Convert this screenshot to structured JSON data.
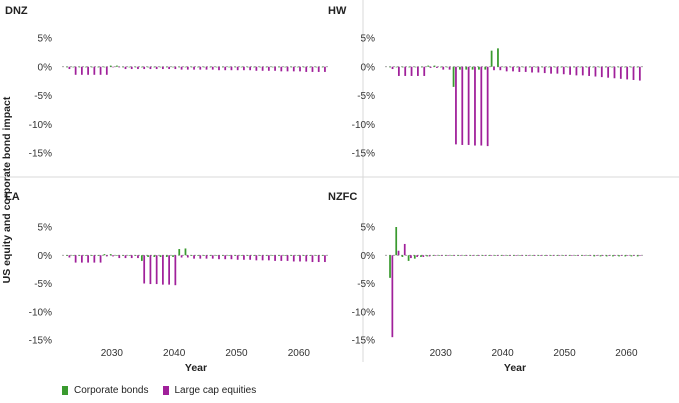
{
  "y_axis_label": "US equity  and corporate bond impact",
  "legend": {
    "items": [
      {
        "label": "Corporate bonds",
        "color": "#3a9a2f"
      },
      {
        "label": "Large cap equities",
        "color": "#a0209a"
      }
    ]
  },
  "chart_data": [
    {
      "type": "bar",
      "title": "DNZ",
      "xlabel": "",
      "ylabel": "",
      "ylim": [
        -15,
        5
      ],
      "y_ticks": [
        "5%",
        "0%",
        "-5%",
        "-10%",
        "-15%"
      ],
      "x_ticks": [],
      "years": [
        2023,
        2024,
        2025,
        2026,
        2027,
        2028,
        2029,
        2030,
        2031,
        2032,
        2033,
        2034,
        2035,
        2036,
        2037,
        2038,
        2039,
        2040,
        2041,
        2042,
        2043,
        2044,
        2045,
        2046,
        2047,
        2048,
        2049,
        2050,
        2051,
        2052,
        2053,
        2054,
        2055,
        2056,
        2057,
        2058,
        2059,
        2060,
        2061,
        2062,
        2063,
        2064
      ],
      "series": [
        {
          "name": "Corporate bonds",
          "values": [
            0,
            -0.1,
            -0.1,
            -0.1,
            -0.1,
            -0.1,
            -0.1,
            0.2,
            0.2,
            -0.1,
            -0.1,
            -0.1,
            -0.1,
            -0.1,
            -0.1,
            -0.1,
            -0.1,
            -0.1,
            -0.1,
            -0.1,
            -0.1,
            -0.1,
            -0.1,
            -0.1,
            -0.1,
            -0.1,
            -0.1,
            -0.1,
            -0.1,
            -0.1,
            -0.1,
            -0.1,
            -0.1,
            -0.1,
            -0.1,
            -0.1,
            -0.1,
            -0.1,
            -0.1,
            -0.1,
            -0.1,
            -0.1
          ]
        },
        {
          "name": "Large cap equities",
          "values": [
            -0.4,
            -1.4,
            -1.4,
            -1.4,
            -1.4,
            -1.4,
            -1.4,
            -0.1,
            -0.1,
            -0.4,
            -0.4,
            -0.4,
            -0.4,
            -0.4,
            -0.4,
            -0.4,
            -0.4,
            -0.4,
            -0.5,
            -0.5,
            -0.5,
            -0.5,
            -0.5,
            -0.5,
            -0.6,
            -0.6,
            -0.6,
            -0.6,
            -0.6,
            -0.6,
            -0.7,
            -0.7,
            -0.7,
            -0.7,
            -0.8,
            -0.8,
            -0.8,
            -0.8,
            -0.9,
            -0.9,
            -0.9,
            -0.9
          ]
        }
      ]
    },
    {
      "type": "bar",
      "title": "HW",
      "xlabel": "",
      "ylabel": "",
      "ylim": [
        -15,
        5
      ],
      "y_ticks": [
        "5%",
        "0%",
        "-5%",
        "-10%",
        "-15%"
      ],
      "x_ticks": [],
      "years": [
        2023,
        2024,
        2025,
        2026,
        2027,
        2028,
        2029,
        2030,
        2031,
        2032,
        2033,
        2034,
        2035,
        2036,
        2037,
        2038,
        2039,
        2040,
        2041,
        2042,
        2043,
        2044,
        2045,
        2046,
        2047,
        2048,
        2049,
        2050,
        2051,
        2052,
        2053,
        2054,
        2055,
        2056,
        2057,
        2058,
        2059,
        2060,
        2061,
        2062
      ],
      "series": [
        {
          "name": "Corporate bonds",
          "values": [
            0,
            -0.1,
            -0.1,
            -0.1,
            -0.1,
            -0.1,
            0.2,
            0.2,
            -0.1,
            -0.1,
            -3.5,
            -0.5,
            -0.5,
            -0.5,
            -0.5,
            -0.5,
            2.8,
            3.2,
            -0.1,
            -0.1,
            -0.1,
            -0.1,
            -0.1,
            -0.1,
            -0.1,
            -0.1,
            -0.1,
            -0.1,
            -0.1,
            -0.1,
            -0.1,
            -0.1,
            -0.1,
            -0.1,
            -0.1,
            -0.1,
            -0.1,
            -0.1,
            -0.1,
            -0.1
          ]
        },
        {
          "name": "Large cap equities",
          "values": [
            -0.4,
            -1.6,
            -1.6,
            -1.6,
            -1.6,
            -1.6,
            -0.2,
            -0.2,
            -0.5,
            -0.5,
            -13.5,
            -13.6,
            -13.6,
            -13.7,
            -13.7,
            -13.8,
            -0.6,
            -0.6,
            -0.8,
            -0.8,
            -0.9,
            -0.9,
            -1.0,
            -1.0,
            -1.1,
            -1.2,
            -1.2,
            -1.3,
            -1.4,
            -1.5,
            -1.5,
            -1.6,
            -1.7,
            -1.8,
            -1.9,
            -2.0,
            -2.1,
            -2.2,
            -2.3,
            -2.4
          ]
        }
      ]
    },
    {
      "type": "bar",
      "title": "LA",
      "xlabel": "Year",
      "ylabel": "",
      "ylim": [
        -15,
        5
      ],
      "y_ticks": [
        "5%",
        "0%",
        "-5%",
        "-10%",
        "-15%"
      ],
      "x_ticks": [
        "2030",
        "2040",
        "2050",
        "2060"
      ],
      "years": [
        2023,
        2024,
        2025,
        2026,
        2027,
        2028,
        2029,
        2030,
        2031,
        2032,
        2033,
        2034,
        2035,
        2036,
        2037,
        2038,
        2039,
        2040,
        2041,
        2042,
        2043,
        2044,
        2045,
        2046,
        2047,
        2048,
        2049,
        2050,
        2051,
        2052,
        2053,
        2054,
        2055,
        2056,
        2057,
        2058,
        2059,
        2060,
        2061,
        2062,
        2063,
        2064
      ],
      "series": [
        {
          "name": "Corporate bonds",
          "values": [
            0,
            -0.1,
            -0.1,
            -0.1,
            -0.1,
            -0.1,
            0.2,
            0.2,
            -0.1,
            -0.1,
            -0.1,
            -0.1,
            -1.0,
            -0.3,
            -0.3,
            -0.3,
            -0.3,
            -0.3,
            1.1,
            1.2,
            -0.1,
            -0.1,
            -0.1,
            -0.1,
            -0.1,
            -0.1,
            -0.1,
            -0.1,
            -0.1,
            -0.1,
            -0.1,
            -0.1,
            -0.1,
            -0.1,
            -0.1,
            -0.1,
            -0.1,
            -0.1,
            -0.1,
            -0.1,
            -0.1,
            -0.1
          ]
        },
        {
          "name": "Large cap equities",
          "values": [
            -0.4,
            -1.3,
            -1.3,
            -1.3,
            -1.3,
            -1.3,
            -0.2,
            -0.2,
            -0.5,
            -0.5,
            -0.5,
            -0.5,
            -5.0,
            -5.1,
            -5.1,
            -5.2,
            -5.2,
            -5.3,
            -0.4,
            -0.4,
            -0.6,
            -0.6,
            -0.6,
            -0.6,
            -0.7,
            -0.7,
            -0.7,
            -0.8,
            -0.8,
            -0.8,
            -0.9,
            -0.9,
            -0.9,
            -1.0,
            -1.0,
            -1.0,
            -1.1,
            -1.1,
            -1.1,
            -1.2,
            -1.2,
            -1.2
          ]
        }
      ]
    },
    {
      "type": "bar",
      "title": "NZFC",
      "xlabel": "Year",
      "ylabel": "",
      "ylim": [
        -15,
        5
      ],
      "y_ticks": [
        "5%",
        "0%",
        "-5%",
        "-10%",
        "-15%"
      ],
      "x_ticks": [
        "2030",
        "2040",
        "2050",
        "2060"
      ],
      "years": [
        2022,
        2023,
        2024,
        2025,
        2026,
        2027,
        2028,
        2029,
        2030,
        2031,
        2032,
        2033,
        2034,
        2035,
        2036,
        2037,
        2038,
        2039,
        2040,
        2041,
        2042,
        2043,
        2044,
        2045,
        2046,
        2047,
        2048,
        2049,
        2050,
        2051,
        2052,
        2053,
        2054,
        2055,
        2056,
        2057,
        2058,
        2059,
        2060,
        2061,
        2062
      ],
      "series": [
        {
          "name": "Corporate bonds",
          "values": [
            -4.0,
            5.0,
            -0.3,
            -1.0,
            -0.6,
            -0.3,
            -0.2,
            -0.1,
            -0.1,
            -0.1,
            -0.1,
            -0.1,
            -0.1,
            -0.1,
            -0.1,
            -0.1,
            -0.1,
            -0.1,
            -0.1,
            -0.1,
            -0.1,
            -0.1,
            -0.1,
            -0.1,
            -0.1,
            -0.1,
            -0.1,
            -0.1,
            -0.1,
            -0.1,
            -0.1,
            -0.1,
            -0.1,
            -0.2,
            -0.2,
            -0.2,
            -0.2,
            -0.2,
            -0.2,
            -0.2,
            -0.2
          ]
        },
        {
          "name": "Large cap equities",
          "values": [
            -14.5,
            0.8,
            2.0,
            -0.5,
            -0.3,
            -0.3,
            -0.2,
            -0.1,
            -0.1,
            -0.1,
            -0.1,
            -0.1,
            -0.1,
            -0.1,
            -0.1,
            -0.1,
            -0.1,
            -0.1,
            -0.1,
            -0.1,
            -0.1,
            -0.1,
            -0.1,
            -0.1,
            -0.1,
            -0.1,
            -0.1,
            -0.1,
            -0.1,
            -0.1,
            -0.1,
            -0.1,
            -0.1,
            -0.1,
            -0.1,
            -0.1,
            -0.1,
            -0.1,
            -0.1,
            -0.1,
            -0.1
          ]
        }
      ]
    }
  ]
}
